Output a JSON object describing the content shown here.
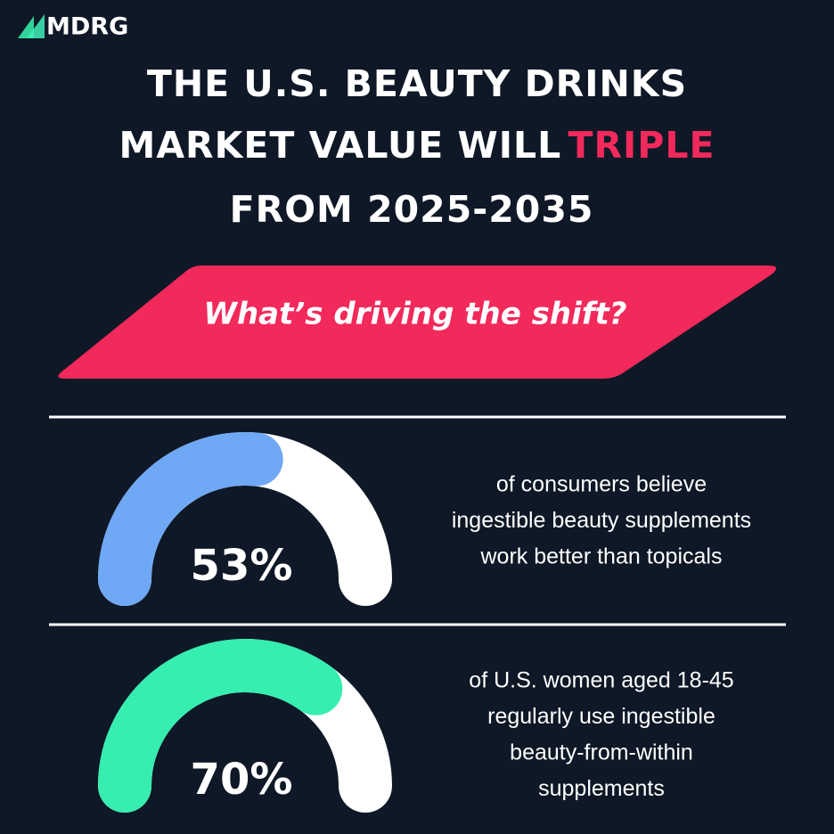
{
  "logo": "MDRG",
  "title": {
    "line1": "THE U.S. BEAUTY DRINKS",
    "line2": "MARKET VALUE WILL",
    "highlight": "TRIPLE",
    "line3": "FROM 2025-2035"
  },
  "banner": "What’s driving the shift?",
  "stats": [
    {
      "value": 53,
      "value_label": "53%",
      "color": "#6fa8f5",
      "text": [
        "of consumers believe",
        "ingestible beauty supplements",
        "work better than topicals"
      ]
    },
    {
      "value": 70,
      "value_label": "70%",
      "color": "#35eeb0",
      "text": [
        "of U.S. women aged 18-45",
        "regularly use ingestible",
        "beauty-from-within",
        "supplements"
      ]
    }
  ]
}
